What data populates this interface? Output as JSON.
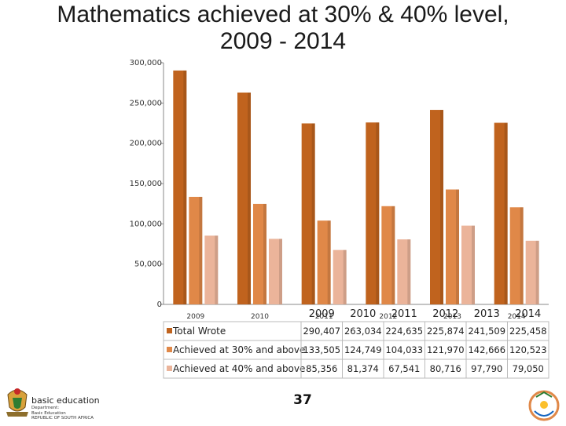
{
  "header": {
    "title_line1": "Mathematics achieved at 30% & 40% level,",
    "title_line2": "2009 - 2014"
  },
  "chart_data": {
    "type": "bar",
    "categories": [
      "2009",
      "2010",
      "2011",
      "2012",
      "2013",
      "2014"
    ],
    "y_tick_labels": [
      "0",
      "50,000",
      "100,000",
      "150,000",
      "200,000",
      "250,000",
      "300,000"
    ],
    "ylim": [
      0,
      300000
    ],
    "grid": false,
    "legend": "data-table",
    "xaxis_small_labels": [
      "2009",
      "2010",
      "2011",
      "2012",
      "2013",
      "2014"
    ],
    "series": [
      {
        "name": "Total Wrote",
        "color": "#C0631E",
        "values": [
          290407,
          263034,
          224635,
          225874,
          241509,
          225458
        ],
        "labels": [
          "290,407",
          "263,034",
          "224,635",
          "225,874",
          "241,509",
          "225,458"
        ]
      },
      {
        "name": "Achieved at 30% and above",
        "color": "#E08848",
        "values": [
          133505,
          124749,
          104033,
          121970,
          142666,
          120523
        ],
        "labels": [
          "133,505",
          "124,749",
          "104,033",
          "121,970",
          "142,666",
          "120,523"
        ]
      },
      {
        "name": "Achieved at 40% and above",
        "color": "#EBB49A",
        "values": [
          85356,
          81374,
          67541,
          80716,
          97790,
          79050
        ],
        "labels": [
          "85,356",
          "81,374",
          "67,541",
          "80,716",
          "97,790",
          "79,050"
        ]
      }
    ]
  },
  "footer": {
    "page_number": "37",
    "brand_name": "basic education",
    "brand_sub_line1": "Department:",
    "brand_sub_line2": "Basic Education",
    "brand_sub_line3": "REPUBLIC OF SOUTH AFRICA"
  }
}
